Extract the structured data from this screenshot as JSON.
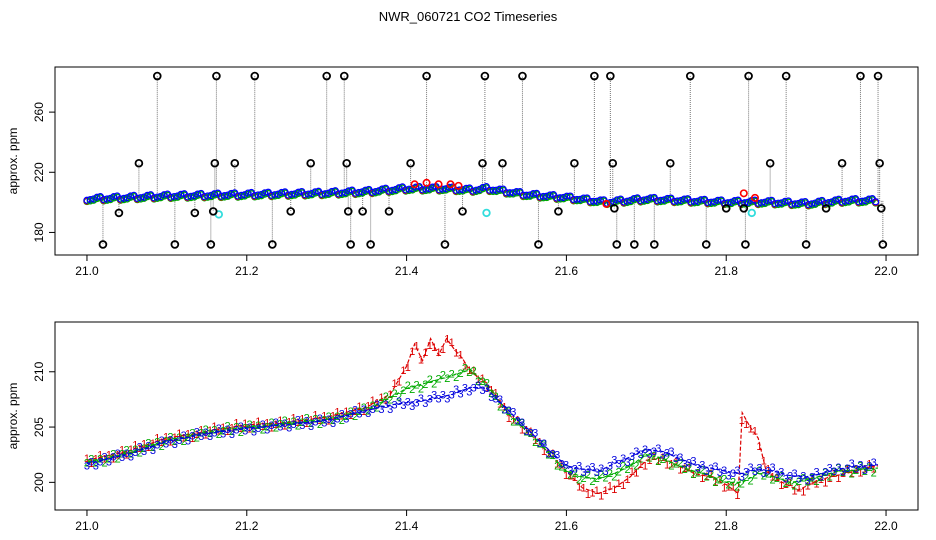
{
  "title": "NWR_060721  CO2 Timeseries",
  "chart_data": [
    {
      "type": "scatter",
      "ylabel": "approx. ppm",
      "xlim": [
        20.96,
        22.04
      ],
      "ylim": [
        165,
        290
      ],
      "xticks": [
        21.0,
        21.2,
        21.4,
        21.6,
        21.8,
        22.0
      ],
      "xtick_labels": [
        "21.0",
        "21.2",
        "21.4",
        "21.6",
        "21.8",
        "22.0"
      ],
      "yticks": [
        180,
        220,
        260
      ],
      "ytick_labels": [
        "180",
        "220",
        "260"
      ],
      "baseline": {
        "x": [
          21.0,
          21.1,
          21.2,
          21.3,
          21.35,
          21.4,
          21.45,
          21.48,
          21.5,
          21.55,
          21.6,
          21.65,
          21.7,
          21.75,
          21.8,
          21.85,
          21.9,
          21.95,
          21.99
        ],
        "y": [
          202,
          204,
          205,
          206,
          207,
          209,
          209,
          208,
          209,
          205,
          203,
          200,
          202,
          201,
          200,
          200,
          199,
          201,
          201
        ],
        "colors": [
          "#0000ff",
          "#00aa00",
          "#ff0000",
          "#00cccc"
        ]
      },
      "series_black_outliers": {
        "name": "black",
        "color": "#000000",
        "points": [
          [
            21.02,
            172
          ],
          [
            21.04,
            193
          ],
          [
            21.065,
            226
          ],
          [
            21.088,
            284
          ],
          [
            21.11,
            172
          ],
          [
            21.135,
            193
          ],
          [
            21.155,
            172
          ],
          [
            21.16,
            226
          ],
          [
            21.162,
            284
          ],
          [
            21.158,
            194
          ],
          [
            21.185,
            226
          ],
          [
            21.21,
            284
          ],
          [
            21.232,
            172
          ],
          [
            21.255,
            194
          ],
          [
            21.28,
            226
          ],
          [
            21.3,
            284
          ],
          [
            21.322,
            284
          ],
          [
            21.325,
            226
          ],
          [
            21.327,
            194
          ],
          [
            21.33,
            172
          ],
          [
            21.345,
            194
          ],
          [
            21.355,
            172
          ],
          [
            21.378,
            194
          ],
          [
            21.405,
            226
          ],
          [
            21.425,
            284
          ],
          [
            21.448,
            172
          ],
          [
            21.47,
            194
          ],
          [
            21.495,
            226
          ],
          [
            21.498,
            284
          ],
          [
            21.52,
            226
          ],
          [
            21.545,
            284
          ],
          [
            21.565,
            172
          ],
          [
            21.59,
            194
          ],
          [
            21.61,
            226
          ],
          [
            21.635,
            284
          ],
          [
            21.655,
            284
          ],
          [
            21.658,
            226
          ],
          [
            21.66,
            196
          ],
          [
            21.663,
            172
          ],
          [
            21.685,
            172
          ],
          [
            21.71,
            172
          ],
          [
            21.73,
            226
          ],
          [
            21.755,
            284
          ],
          [
            21.775,
            172
          ],
          [
            21.8,
            196
          ],
          [
            21.822,
            196
          ],
          [
            21.824,
            172
          ],
          [
            21.828,
            284
          ],
          [
            21.855,
            226
          ],
          [
            21.875,
            284
          ],
          [
            21.9,
            172
          ],
          [
            21.925,
            196
          ],
          [
            21.945,
            226
          ],
          [
            21.968,
            284
          ],
          [
            21.99,
            284
          ],
          [
            21.992,
            226
          ],
          [
            21.994,
            196
          ],
          [
            21.996,
            172
          ]
        ]
      },
      "series_cyan_points": {
        "name": "cyan",
        "color": "#33dddd",
        "points": [
          [
            21.165,
            192
          ],
          [
            21.5,
            193
          ],
          [
            21.832,
            193
          ]
        ]
      },
      "series_red_points": {
        "name": "red",
        "color": "#ff0000",
        "points": [
          [
            21.41,
            212
          ],
          [
            21.425,
            213
          ],
          [
            21.44,
            212
          ],
          [
            21.455,
            212
          ],
          [
            21.465,
            211
          ],
          [
            21.822,
            206
          ],
          [
            21.836,
            203
          ],
          [
            21.65,
            199
          ]
        ]
      }
    },
    {
      "type": "line",
      "ylabel": "approx. ppm",
      "xlim": [
        20.96,
        22.04
      ],
      "ylim": [
        197.5,
        214.5
      ],
      "xticks": [
        21.0,
        21.2,
        21.4,
        21.6,
        21.8,
        22.0
      ],
      "xtick_labels": [
        "21.0",
        "21.2",
        "21.4",
        "21.6",
        "21.8",
        "22.0"
      ],
      "yticks": [
        200,
        205,
        210
      ],
      "ytick_labels": [
        "200",
        "205",
        "210"
      ],
      "markers": [
        "1",
        "2",
        "3"
      ],
      "series": [
        {
          "name": "1",
          "color": "#dd0000",
          "x": [
            21.0,
            21.05,
            21.1,
            21.15,
            21.2,
            21.25,
            21.3,
            21.35,
            21.38,
            21.4,
            21.41,
            21.42,
            21.43,
            21.44,
            21.45,
            21.46,
            21.47,
            21.48,
            21.5,
            21.53,
            21.56,
            21.58,
            21.6,
            21.62,
            21.64,
            21.66,
            21.68,
            21.7,
            21.72,
            21.74,
            21.76,
            21.78,
            21.8,
            21.815,
            21.82,
            21.83,
            21.84,
            21.85,
            21.87,
            21.89,
            21.91,
            21.93,
            21.95,
            21.97,
            21.99
          ],
          "y": [
            202.0,
            202.8,
            204.0,
            204.6,
            205.2,
            205.4,
            205.9,
            206.8,
            208.0,
            210.5,
            212.5,
            211.0,
            213.0,
            211.5,
            213.0,
            212.0,
            211.2,
            210.0,
            209.0,
            206.0,
            204.0,
            202.5,
            201.0,
            199.5,
            199.0,
            199.5,
            200.5,
            202.0,
            202.2,
            201.5,
            200.8,
            200.5,
            199.8,
            199.0,
            206.3,
            205.0,
            204.0,
            201.0,
            200.0,
            199.3,
            200.0,
            200.5,
            200.8,
            201.2,
            201.5
          ]
        },
        {
          "name": "2",
          "color": "#00aa00",
          "x": [
            21.0,
            21.05,
            21.1,
            21.15,
            21.2,
            21.25,
            21.3,
            21.35,
            21.4,
            21.45,
            21.48,
            21.5,
            21.53,
            21.56,
            21.58,
            21.6,
            21.62,
            21.64,
            21.66,
            21.68,
            21.7,
            21.72,
            21.74,
            21.76,
            21.78,
            21.8,
            21.82,
            21.84,
            21.86,
            21.88,
            21.9,
            21.92,
            21.94,
            21.96,
            21.99
          ],
          "y": [
            201.8,
            202.6,
            203.8,
            204.5,
            205.0,
            205.3,
            205.7,
            206.5,
            208.5,
            209.5,
            210.2,
            208.8,
            206.0,
            204.0,
            202.5,
            201.0,
            200.5,
            200.3,
            200.8,
            201.5,
            202.5,
            202.2,
            201.5,
            201.0,
            200.6,
            200.0,
            200.0,
            200.8,
            200.5,
            200.0,
            200.2,
            200.6,
            201.0,
            201.1,
            201.3
          ]
        },
        {
          "name": "3",
          "color": "#0000dd",
          "x": [
            21.0,
            21.05,
            21.1,
            21.15,
            21.2,
            21.25,
            21.3,
            21.35,
            21.38,
            21.4,
            21.43,
            21.46,
            21.48,
            21.5,
            21.53,
            21.56,
            21.58,
            21.6,
            21.62,
            21.64,
            21.66,
            21.68,
            21.7,
            21.72,
            21.74,
            21.76,
            21.78,
            21.8,
            21.82,
            21.84,
            21.86,
            21.88,
            21.9,
            21.92,
            21.94,
            21.96,
            21.99
          ],
          "y": [
            201.7,
            202.5,
            203.7,
            204.4,
            204.9,
            205.2,
            205.6,
            206.5,
            207.0,
            207.2,
            207.5,
            208.0,
            208.6,
            208.5,
            206.3,
            204.2,
            202.8,
            201.5,
            201.2,
            201.0,
            201.7,
            202.3,
            203.0,
            202.8,
            202.2,
            201.6,
            201.3,
            201.0,
            200.8,
            201.2,
            201.0,
            200.6,
            200.5,
            200.8,
            201.2,
            201.4,
            201.6
          ]
        }
      ]
    }
  ]
}
